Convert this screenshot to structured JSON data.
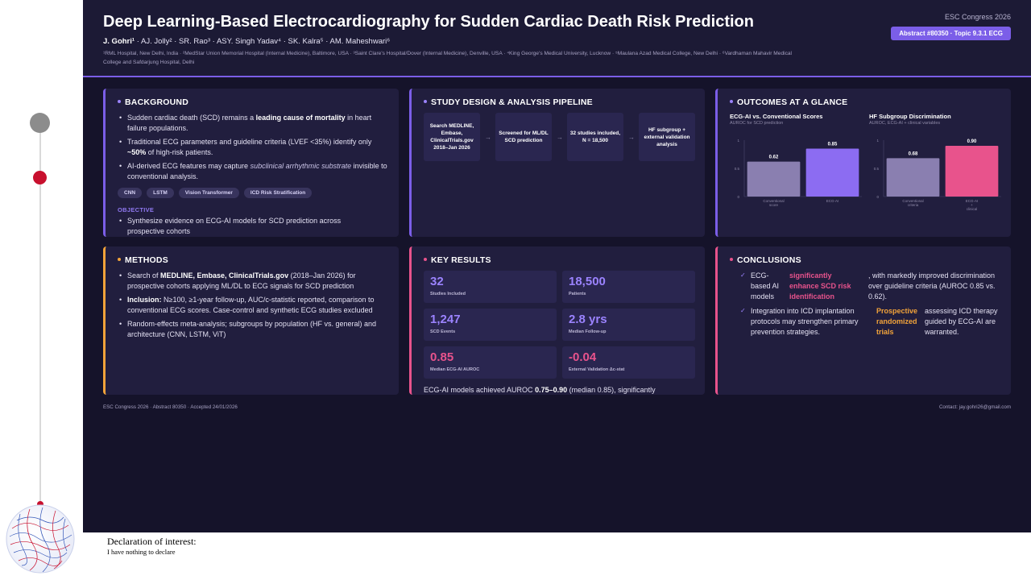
{
  "header": {
    "title": "Deep Learning-Based Electrocardiography for Sudden Cardiac Death Risk Prediction",
    "first_author": "J. Gohri¹",
    "other_authors": " · AJ. Jolly² · SR. Rao³ · ASY. Singh Yadav⁴ · SK. Kalra⁵ · AM. Maheshwari⁶",
    "affiliations": "¹RML Hospital, New Delhi, India · ²MedStar Union Memorial Hospital (Internal Medicine), Baltimore, USA · ³Saint Clare's Hospital/Dover (Internal Medicine), Denville, USA · ⁴King George's Medical University, Lucknow · ⁵Maulana Azad Medical College, New Delhi · ⁶Vardhaman Mahavir Medical College and Safdarjung Hospital, Delhi",
    "congress": "ESC Congress 2026",
    "abstract_badge": "Abstract #80350 · Topic 9.3.1 ECG"
  },
  "background": {
    "heading": "BACKGROUND",
    "b1_pre": "Sudden cardiac death (SCD) remains a ",
    "b1_bold": "leading cause of mortality",
    "b1_post": " in heart failure populations.",
    "b2_pre": "Traditional ECG parameters and guideline criteria (LVEF <35%) identify only ",
    "b2_bold": "~50%",
    "b2_post": " of high-risk patients.",
    "b3_pre": "AI-derived ECG features may capture ",
    "b3_em": "subclinical arrhythmic substrate",
    "b3_post": " invisible to conventional analysis.",
    "tags": [
      "CNN",
      "LSTM",
      "Vision Transformer",
      "ICD Risk Stratification"
    ],
    "objective_label": "OBJECTIVE",
    "objective_text": "Synthesize evidence on ECG-AI models for SCD prediction across prospective cohorts"
  },
  "pipeline": {
    "heading": "STUDY DESIGN & ANALYSIS PIPELINE",
    "steps": [
      "Search MEDLINE, Embase, ClinicalTrials.gov 2018–Jan 2026",
      "Screened for ML/DL SCD prediction",
      "32 studies included, N = 18,500",
      "HF subgroup + external validation analysis"
    ],
    "arrow": "→"
  },
  "outcomes": {
    "heading": "OUTCOMES AT A GLANCE",
    "chart1_title": "ECG-AI vs. Conventional Scores",
    "chart1_sub": "AUROC for SCD prediction",
    "chart2_title": "HF Subgroup Discrimination",
    "chart2_sub": "AUROC, ECG-AI + clinical variables"
  },
  "chart_data": [
    {
      "type": "bar",
      "title": "ECG-AI vs. Conventional Scores",
      "subtitle": "AUROC for SCD prediction",
      "categories": [
        "Conventional score",
        "ECG-AI"
      ],
      "values": [
        0.62,
        0.85
      ],
      "value_labels": [
        "0.62",
        "0.85"
      ],
      "ytick_labels": [
        "1",
        "0.5",
        "0"
      ],
      "ylim": [
        0,
        1
      ],
      "colors": [
        "#8a7fb0",
        "#8c6cf2"
      ],
      "grid": false
    },
    {
      "type": "bar",
      "title": "HF Subgroup Discrimination",
      "subtitle": "AUROC, ECG-AI + clinical variables",
      "categories": [
        "Conventional criteria",
        "ECG-AI + clinical"
      ],
      "values": [
        0.68,
        0.9
      ],
      "value_labels": [
        "0.68",
        "0.90"
      ],
      "ytick_labels": [
        "1",
        "0.5",
        "0"
      ],
      "ylim": [
        0,
        1
      ],
      "colors": [
        "#8a7fb0",
        "#e8538c"
      ],
      "grid": false
    }
  ],
  "methods": {
    "heading": "METHODS",
    "m1_pre": "Search of ",
    "m1_bold": "MEDLINE, Embase, ClinicalTrials.gov",
    "m1_post": " (2018–Jan 2026) for prospective cohorts applying ML/DL to ECG signals for SCD prediction",
    "m2_bold": "Inclusion:",
    "m2_post": " N≥100, ≥1-year follow-up, AUC/c-statistic reported, comparison to conventional ECG scores. Case-control and synthetic ECG studies excluded",
    "m3": "Random-effects meta-analysis; subgroups by population (HF vs. general) and architecture (CNN, LSTM, ViT)"
  },
  "key_results": {
    "heading": "KEY RESULTS",
    "stats": [
      {
        "value": "32",
        "label": "Studies Included",
        "color": "#9b83ff"
      },
      {
        "value": "18,500",
        "label": "Patients",
        "color": "#9b83ff"
      },
      {
        "value": "1,247",
        "label": "SCD Events",
        "color": "#9b83ff"
      },
      {
        "value": "2.8 yrs",
        "label": "Median Follow-up",
        "color": "#9b83ff"
      },
      {
        "value": "0.85",
        "label": "Median ECG-AI AUROC",
        "color": "#e8538c"
      },
      {
        "value": "-0.04",
        "label": "External Validation Δc-stat",
        "color": "#e8538c"
      }
    ],
    "summary_pre": "ECG-AI models achieved AUROC ",
    "summary_bold": "0.75–0.90",
    "summary_post": " (median 0.85), significantly"
  },
  "conclusions": {
    "heading": "CONCLUSIONS",
    "check": "✓",
    "r1_a": "ECG-based AI models",
    "r1_b": "significantly enhance SCD risk identification",
    "r1_c": ", with markedly improved discrimination over guideline criteria (AUROC 0.85 vs. 0.62).",
    "r2_a": "Integration into ICD implantation protocols may strengthen primary prevention strategies.",
    "r2_b": "Prospective randomized trials",
    "r2_c": "assessing ICD therapy guided by ECG-AI are warranted."
  },
  "footer": {
    "left": "ESC Congress 2026 · Abstract 80350 · Accepted 24/01/2026",
    "right": "Contact: jay.gohri26@gmail.com"
  },
  "declaration": {
    "title": "Declaration of interest:",
    "text": "I have nothing to declare"
  },
  "colors": {
    "accent_purple": "#7b5ee8",
    "accent_pink": "#e8538c",
    "accent_orange": "#f2a33a",
    "card_bg": "#211e3e",
    "poster_bg": "#15132a"
  }
}
